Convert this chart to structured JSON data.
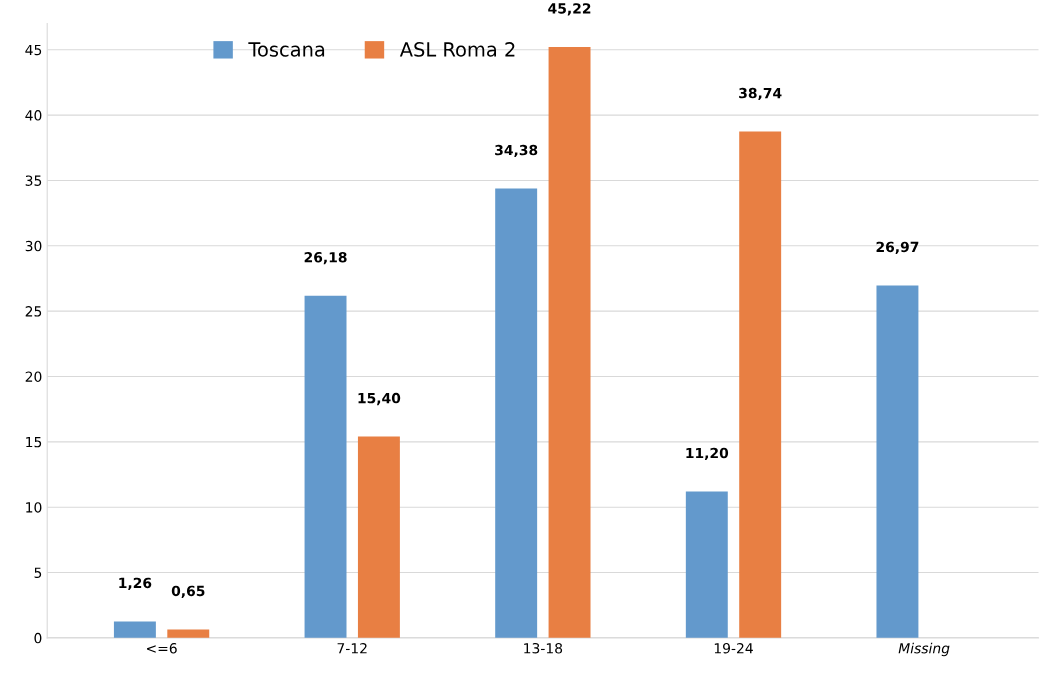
{
  "chart_data": {
    "type": "bar",
    "categories": [
      "<=6",
      "7-12",
      "13-18",
      "19-24",
      "Missing"
    ],
    "series": [
      {
        "name": "Toscana",
        "color": "#6399cc",
        "values": [
          1.26,
          26.18,
          34.38,
          11.2,
          26.97
        ],
        "value_labels": [
          "1,26",
          "26,18",
          "34,38",
          "11,20",
          "26,97"
        ]
      },
      {
        "name": "ASL Roma 2",
        "color": "#e87f43",
        "values": [
          0.65,
          15.4,
          45.22,
          38.74,
          null
        ],
        "value_labels": [
          "0,65",
          "15,40",
          "45,22",
          "38,74",
          null
        ]
      }
    ],
    "ylim": [
      0,
      47
    ],
    "yticks": [
      0,
      5,
      10,
      15,
      20,
      25,
      30,
      35,
      40,
      45
    ],
    "grid": "y",
    "legend": "top left"
  }
}
